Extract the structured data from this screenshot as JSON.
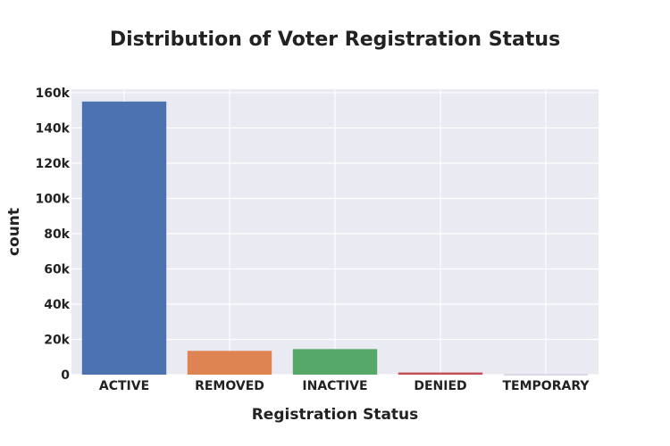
{
  "chart_data": {
    "type": "bar",
    "title": "Distribution of Voter Registration Status",
    "xlabel": "Registration Status",
    "ylabel": "count",
    "categories": [
      "ACTIVE",
      "REMOVED",
      "INACTIVE",
      "DENIED",
      "TEMPORARY"
    ],
    "values": [
      155000,
      13500,
      14500,
      1200,
      100
    ],
    "colors": [
      "#4c72b0",
      "#dd8452",
      "#55a868",
      "#c44e52",
      "#8172b3"
    ],
    "ylim": [
      0,
      162000
    ],
    "yticks": [
      0,
      20000,
      40000,
      60000,
      80000,
      100000,
      120000,
      140000,
      160000
    ],
    "ytick_labels": [
      "0",
      "20k",
      "40k",
      "60k",
      "80k",
      "100k",
      "120k",
      "140k",
      "160k"
    ],
    "grid": true,
    "plot_background": "#eaeaf2",
    "grid_color": "#ffffff"
  }
}
